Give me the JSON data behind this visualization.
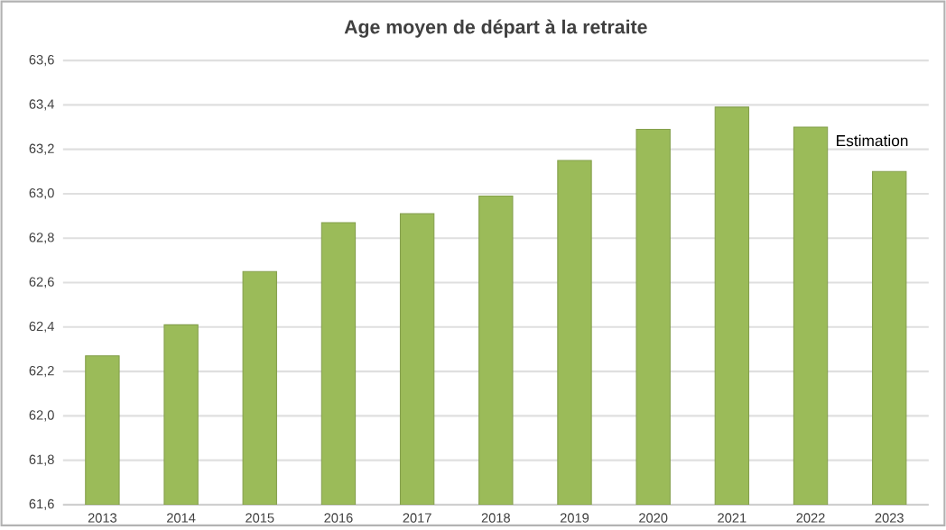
{
  "chart_data": {
    "type": "bar",
    "title": "Age moyen de départ à la retraite",
    "categories": [
      "2013",
      "2014",
      "2015",
      "2016",
      "2017",
      "2018",
      "2019",
      "2020",
      "2021",
      "2022",
      "2023"
    ],
    "values": [
      62.27,
      62.41,
      62.65,
      62.87,
      62.91,
      62.99,
      63.15,
      63.29,
      63.39,
      63.3,
      63.1
    ],
    "color": "#9bbb59",
    "ylim": [
      61.6,
      63.6
    ],
    "yticks": [
      {
        "value": 61.6,
        "label": "61,6"
      },
      {
        "value": 61.8,
        "label": "61,8"
      },
      {
        "value": 62.0,
        "label": "62,0"
      },
      {
        "value": 62.2,
        "label": "62,2"
      },
      {
        "value": 62.4,
        "label": "62,4"
      },
      {
        "value": 62.6,
        "label": "62,6"
      },
      {
        "value": 62.8,
        "label": "62,8"
      },
      {
        "value": 63.0,
        "label": "63,0"
      },
      {
        "value": 63.2,
        "label": "63,2"
      },
      {
        "value": 63.4,
        "label": "63,4"
      },
      {
        "value": 63.6,
        "label": "63,6"
      }
    ],
    "grid": "y",
    "annotations": [
      "Estimation"
    ]
  }
}
